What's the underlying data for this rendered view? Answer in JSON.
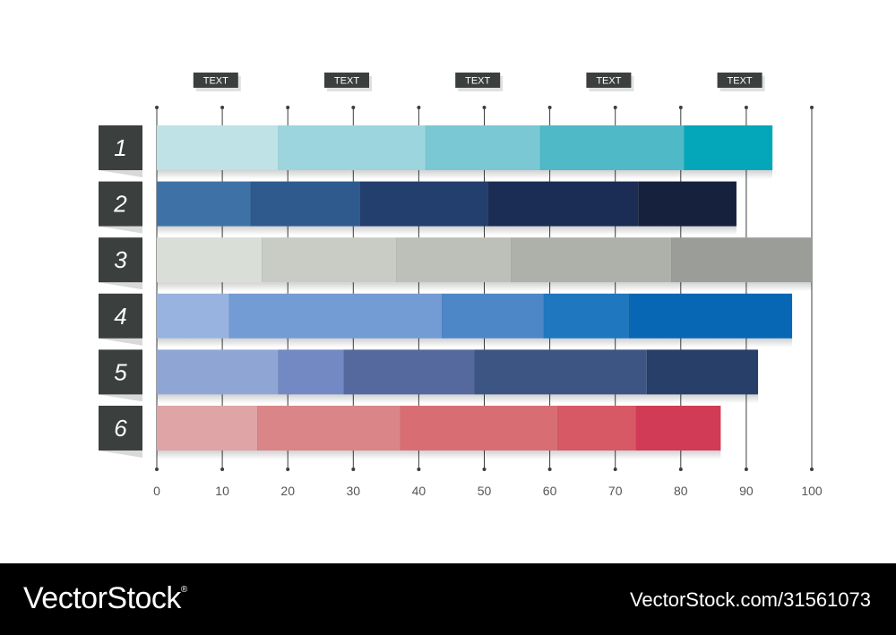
{
  "chart_data": {
    "type": "bar",
    "orientation": "horizontal",
    "stacked": true,
    "title": "",
    "xlabel": "",
    "ylabel": "",
    "xlim": [
      0,
      100
    ],
    "xticks": [
      0,
      10,
      20,
      30,
      40,
      50,
      60,
      70,
      80,
      90,
      100
    ],
    "grid": true,
    "top_labels": [
      {
        "text": "TEXT",
        "x": 9
      },
      {
        "text": "TEXT",
        "x": 29
      },
      {
        "text": "TEXT",
        "x": 49
      },
      {
        "text": "TEXT",
        "x": 69
      },
      {
        "text": "TEXT",
        "x": 89
      }
    ],
    "categories": [
      "1",
      "2",
      "3",
      "4",
      "5",
      "6"
    ],
    "rows": [
      {
        "label": "1",
        "segments": [
          18.5,
          22.5,
          17.5,
          22,
          13.5
        ],
        "colors": [
          "#bfe2e6",
          "#9cd5de",
          "#79c8d4",
          "#4fb9c8",
          "#04a7b9"
        ]
      },
      {
        "label": "2",
        "segments": [
          14.3,
          16.7,
          19.5,
          23,
          15
        ],
        "colors": [
          "#3e72a6",
          "#2f5a8e",
          "#233f6d",
          "#1b2d54",
          "#15213d"
        ]
      },
      {
        "label": "3",
        "segments": [
          16,
          20.5,
          17.5,
          24.5,
          21.5
        ],
        "colors": [
          "#d9ded7",
          "#c9ccc5",
          "#bdc0b9",
          "#aeb1aa",
          "#9b9d98"
        ]
      },
      {
        "label": "4",
        "segments": [
          11,
          32.5,
          15.5,
          13,
          25
        ],
        "colors": [
          "#98b3df",
          "#739cd4",
          "#4e87c8",
          "#1f77c0",
          "#0767b5"
        ]
      },
      {
        "label": "5",
        "segments": [
          18.5,
          10,
          20,
          26.3,
          17
        ],
        "colors": [
          "#8fa6d5",
          "#7389c4",
          "#55699f",
          "#3d5583",
          "#283f6a"
        ]
      },
      {
        "label": "6",
        "segments": [
          15.3,
          21.8,
          24,
          12,
          13
        ],
        "colors": [
          "#dfa4a5",
          "#da8588",
          "#d86e74",
          "#d65965",
          "#d13b56"
        ]
      }
    ],
    "label_box_color": "#3b3f3e",
    "gridline_color": "#3b3f3e"
  },
  "footer": {
    "brand": "VectorStock",
    "registered": "®",
    "image_id": "VectorStock.com/31561073"
  }
}
